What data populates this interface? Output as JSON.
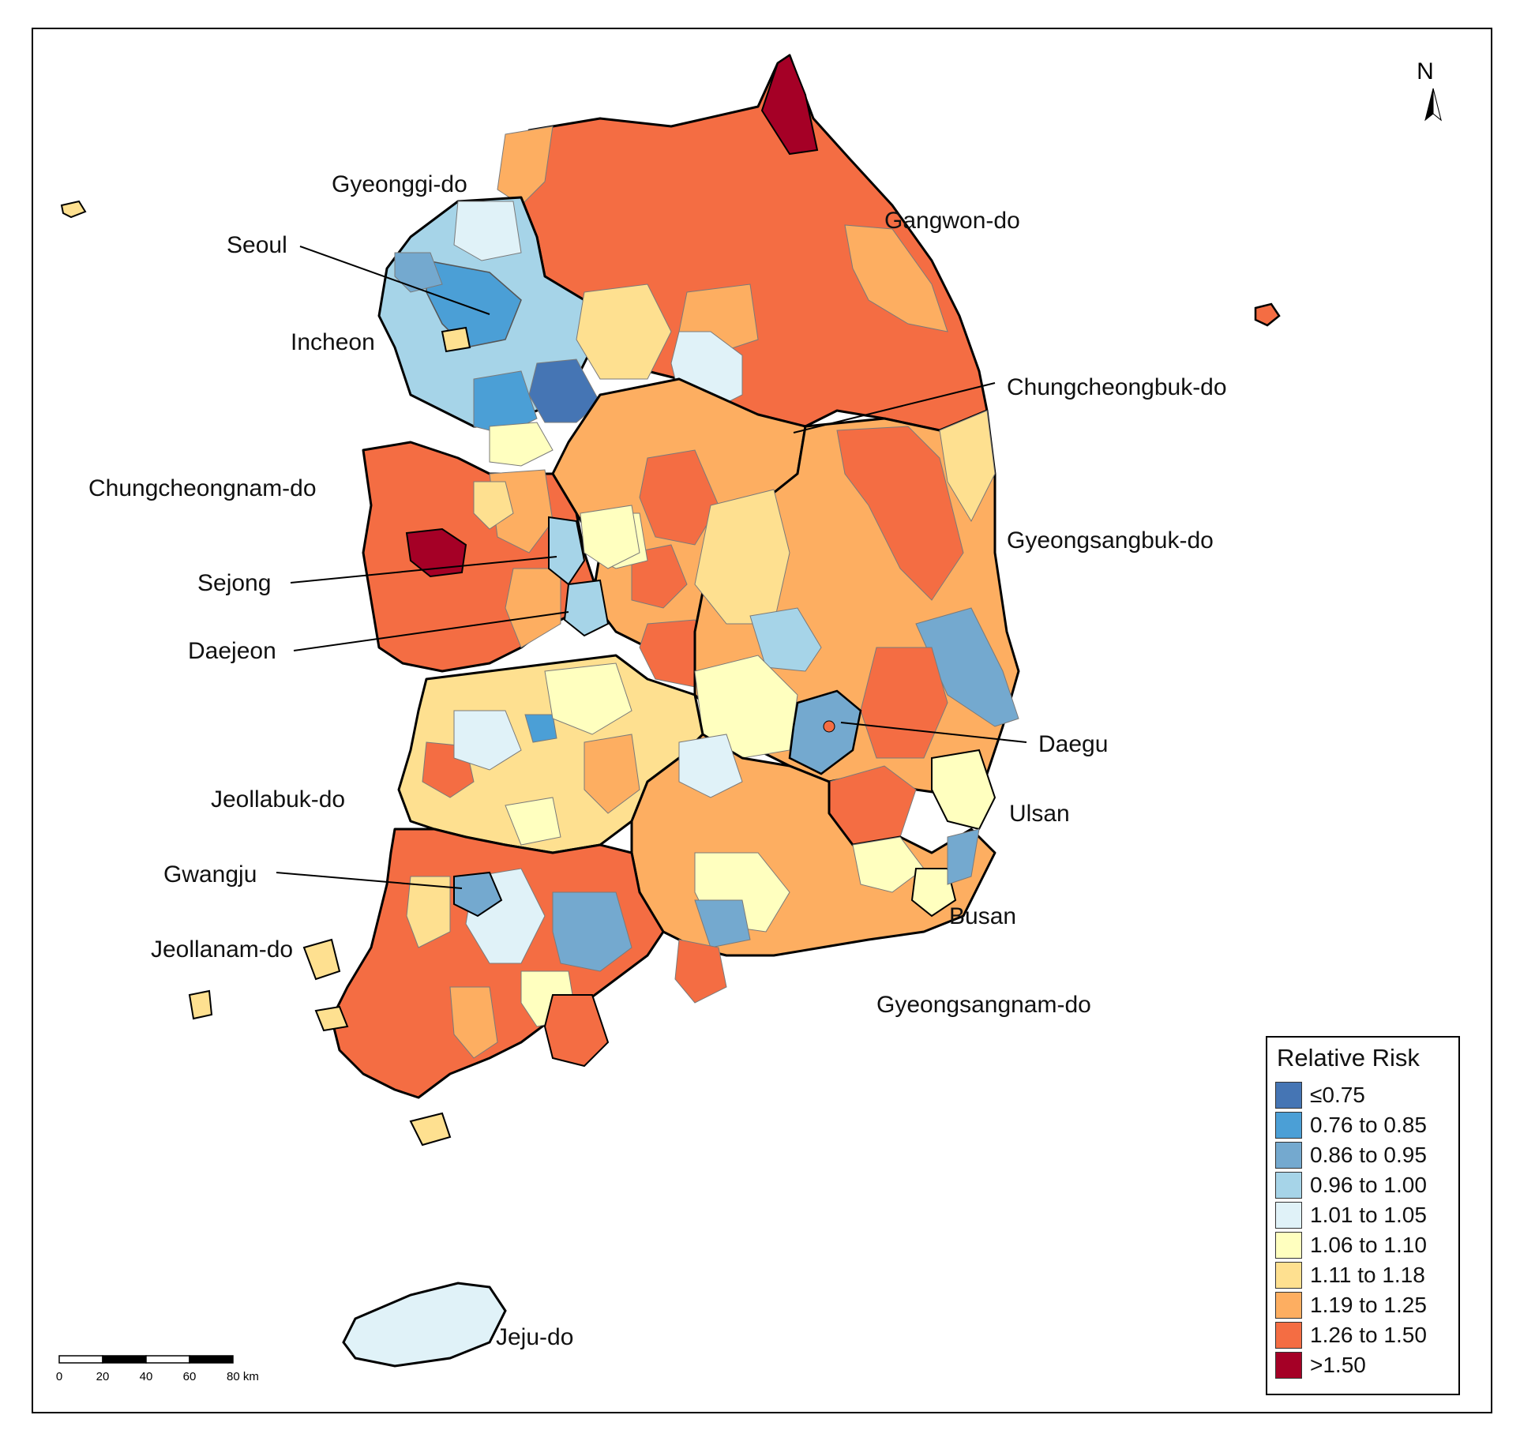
{
  "map": {
    "north_label": "N",
    "regions": [
      {
        "name": "Gyeonggi-do"
      },
      {
        "name": "Gangwon-do"
      },
      {
        "name": "Seoul"
      },
      {
        "name": "Incheon"
      },
      {
        "name": "Chungcheongbuk-do"
      },
      {
        "name": "Chungcheongnam-do"
      },
      {
        "name": "Gyeongsangbuk-do"
      },
      {
        "name": "Sejong"
      },
      {
        "name": "Daejeon"
      },
      {
        "name": "Daegu"
      },
      {
        "name": "Jeollabuk-do"
      },
      {
        "name": "Ulsan"
      },
      {
        "name": "Gwangju"
      },
      {
        "name": "Busan"
      },
      {
        "name": "Jeollanam-do"
      },
      {
        "name": "Gyeongsangnam-do"
      },
      {
        "name": "Jeju-do"
      }
    ],
    "scale_bar": {
      "ticks": [
        "0",
        "20",
        "40",
        "60",
        "80 km"
      ]
    }
  },
  "legend": {
    "title": "Relative Risk",
    "items": [
      {
        "label": "≤0.75",
        "color": "#4575b4"
      },
      {
        "label": "0.76 to 0.85",
        "color": "#4b9fd6"
      },
      {
        "label": "0.86 to 0.95",
        "color": "#74a9cf"
      },
      {
        "label": "0.96 to 1.00",
        "color": "#a6d4e8"
      },
      {
        "label": "1.01 to 1.05",
        "color": "#e0f2f8"
      },
      {
        "label": "1.06 to 1.10",
        "color": "#ffffbf"
      },
      {
        "label": "1.11 to 1.18",
        "color": "#fee090"
      },
      {
        "label": "1.19 to 1.25",
        "color": "#fdae61"
      },
      {
        "label": "1.26 to 1.50",
        "color": "#f46d43"
      },
      {
        "label": ">1.50",
        "color": "#a50026"
      }
    ]
  }
}
